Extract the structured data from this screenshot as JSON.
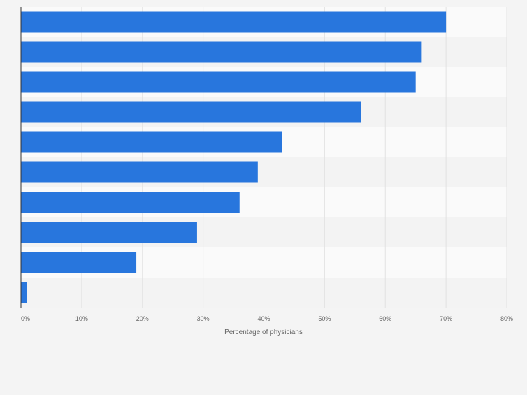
{
  "chart_data": {
    "type": "bar",
    "orientation": "horizontal",
    "categories": [
      "",
      "",
      "",
      "",
      "",
      "",
      "",
      "",
      "",
      ""
    ],
    "values": [
      70,
      66,
      65,
      56,
      43,
      39,
      36,
      29,
      19,
      1
    ],
    "xlabel": "Percentage of physicians",
    "ylabel": "",
    "xlim": [
      0,
      80
    ],
    "x_ticks": [
      0,
      10,
      20,
      30,
      40,
      50,
      60,
      70,
      80
    ],
    "x_tick_labels": [
      "0%",
      "10%",
      "20%",
      "30%",
      "40%",
      "50%",
      "60%",
      "70%",
      "80%"
    ],
    "grid": true,
    "legend": "none",
    "bar_color": "#2876dd"
  },
  "colors": {
    "background": "#f4f4f4",
    "band_light": "#fafafa",
    "band_dark": "#f3f3f3",
    "gridline": "#e2e2e2",
    "axis": "#333333",
    "tick_text": "#666666"
  }
}
